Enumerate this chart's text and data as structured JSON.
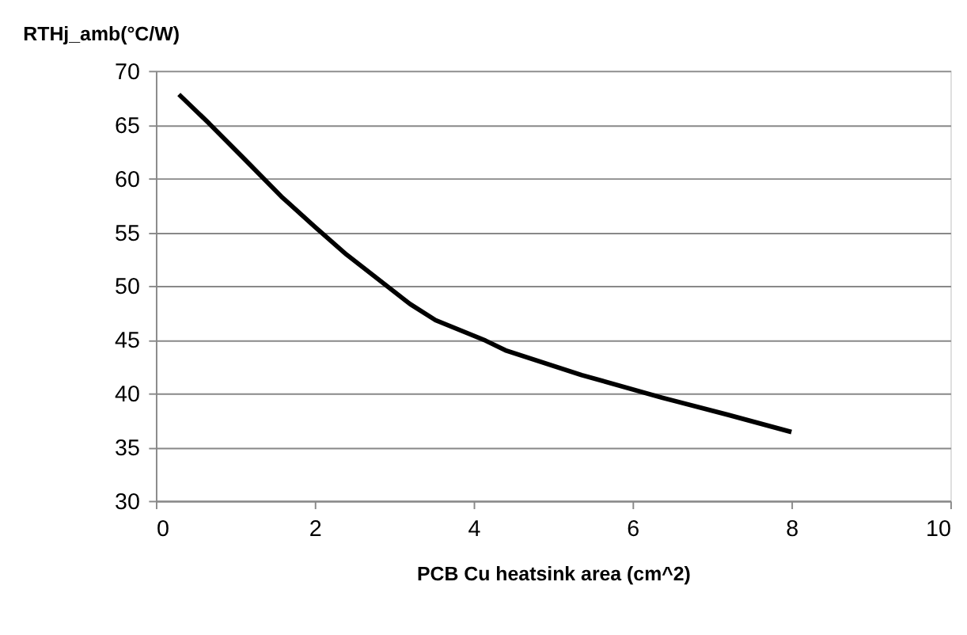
{
  "chart_data": {
    "type": "line",
    "ylabel": "RTHj_amb(°C/W)",
    "xlabel": "PCB Cu heatsink area (cm^2)",
    "x": [
      0.29,
      0.67,
      1.1,
      1.58,
      2.0,
      2.4,
      2.87,
      3.2,
      3.52,
      4.15,
      4.4,
      5.36,
      6.37,
      7.2,
      8.0
    ],
    "series": [
      {
        "color": "#000000",
        "values": [
          67.8,
          65.1,
          61.9,
          58.3,
          55.5,
          52.9,
          50.2,
          48.3,
          46.8,
          44.9,
          44.0,
          41.7,
          39.6,
          38.0,
          36.4
        ]
      }
    ],
    "xlim": [
      0,
      10
    ],
    "xticks": [
      0,
      2,
      4,
      6,
      8,
      10
    ],
    "ylim": [
      30,
      70
    ],
    "yticks": [
      30,
      35,
      40,
      45,
      50,
      55,
      60,
      65,
      70
    ],
    "grid": "y",
    "legend": false,
    "marker": "none",
    "line_style": "solid"
  }
}
